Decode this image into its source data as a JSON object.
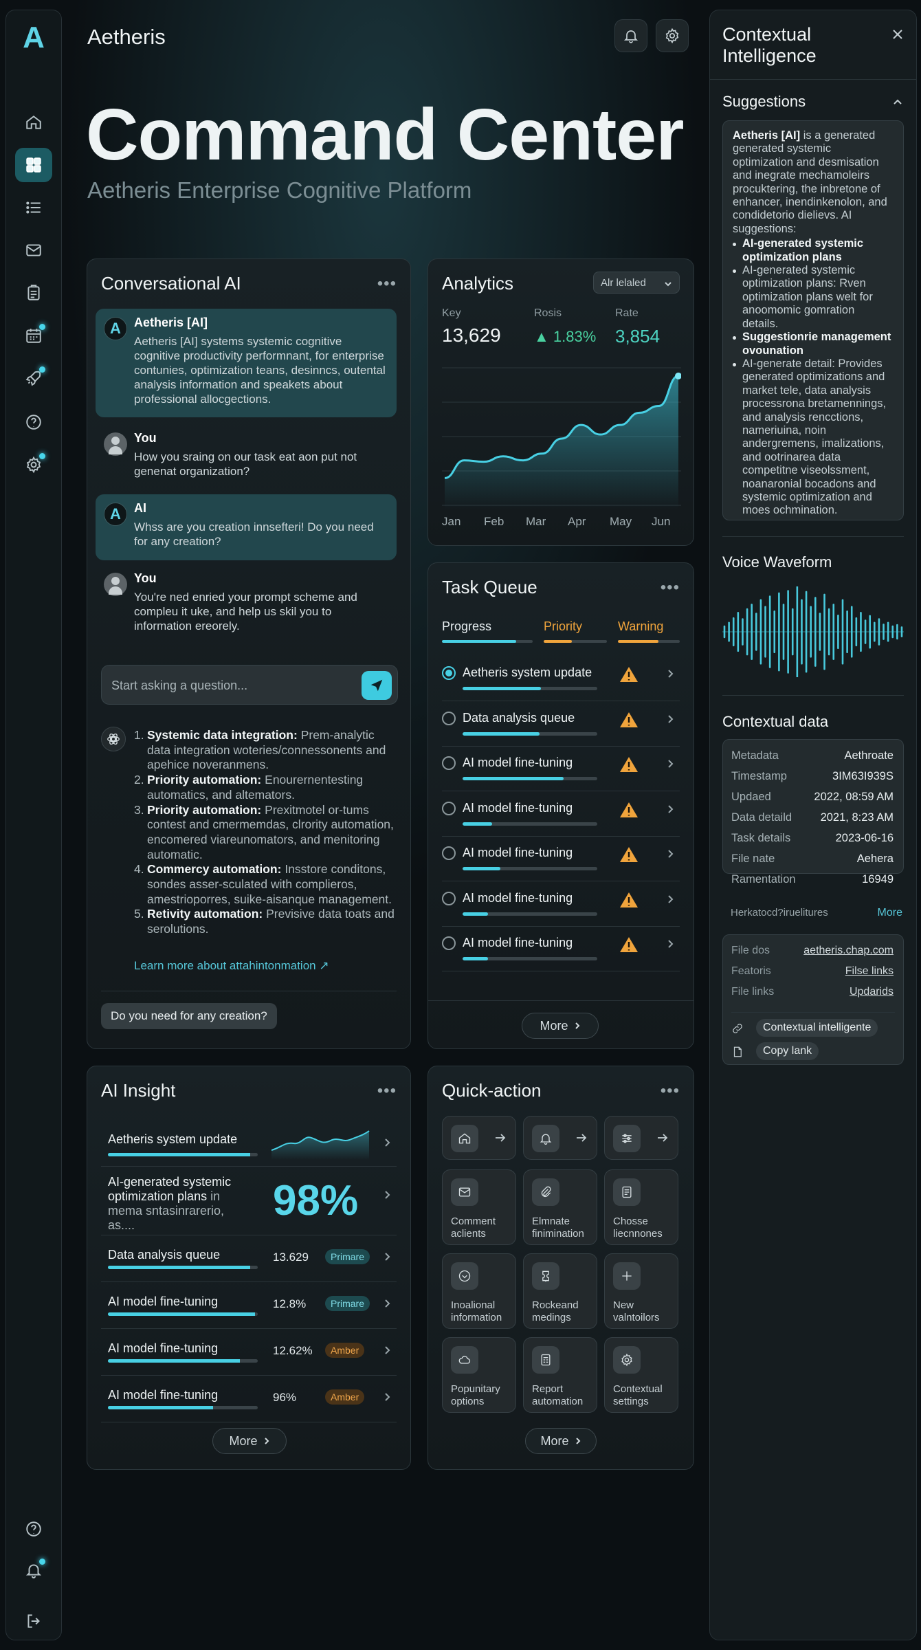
{
  "app": {
    "brand": "Aetheris",
    "logo_letter": "A",
    "title": "Command Center",
    "subtitle": "Aetheris Enterprise Cognitive Platform"
  },
  "nav": {
    "items": [
      {
        "name": "home-icon"
      },
      {
        "name": "dashboard-icon",
        "active": true
      },
      {
        "name": "list-icon"
      },
      {
        "name": "mail-icon"
      },
      {
        "name": "clipboard-icon"
      },
      {
        "name": "calendar-icon",
        "dot": true
      },
      {
        "name": "rocket-icon",
        "dot": true
      },
      {
        "name": "help-icon"
      },
      {
        "name": "settings-icon",
        "dot": true
      }
    ],
    "bottom": [
      {
        "name": "help-icon"
      },
      {
        "name": "bell-icon",
        "dot": true
      },
      {
        "name": "logout-icon"
      }
    ]
  },
  "chat": {
    "title": "Conversational AI",
    "messages": [
      {
        "role": "ai",
        "avatar": "A",
        "author": "Aetheris [AI]",
        "text": "Aetheris [AI] systems systemic cognitive cognitive productivity performnant, for enterprise contunies, optimization teans, desinncs, outental analysis information and speakets about professional allocgections."
      },
      {
        "role": "user",
        "author": "You",
        "text": "How you sraing on our task eat aon put not genenat organization?"
      },
      {
        "role": "ai",
        "avatar": "A",
        "author": "AI",
        "text": "Whss are you creation innsefteri! Do you need for any creation?"
      },
      {
        "role": "user",
        "author": "You",
        "text": "You're ned enried your prompt scheme and compleu it uke, and help us skil you to information ereorely."
      }
    ],
    "input_placeholder": "Start asking a question...",
    "suggestions": [
      {
        "num": "1.",
        "title": "Systemic data integration:",
        "text": "Prem-analytic data integration woteries/connessonents and apehice noveranmens."
      },
      {
        "num": "2.",
        "title": "Priority automation:",
        "text": "Enourernentesting automatics, and altemators."
      },
      {
        "num": "3.",
        "title": "Priority automation:",
        "text": "Prexitmotel or-tums contest and cmermemdas, clrority automation, encomered viareunomators, and menitoring automatic."
      },
      {
        "num": "4.",
        "title": "Commercy automation:",
        "text": "Insstore conditons, sondes asser-sculated with complieros, amestrioporres, suike-aisanque management."
      },
      {
        "num": "5.",
        "title": "Retivity automation:",
        "text": "Previsive data toats and serolutions."
      }
    ],
    "learn_more": "Learn more about attahintonmation ↗",
    "quick_question": "Do you need for any creation?"
  },
  "analytics": {
    "title": "Analytics",
    "select_value": "Alr lelaled",
    "stats": [
      {
        "label": "Key",
        "value": "13,629"
      },
      {
        "label": "Rosis",
        "value": "▲ 1.83%"
      },
      {
        "label": "Rate",
        "value": "3,854"
      }
    ],
    "chart_data": {
      "type": "area",
      "categories": [
        "Jan",
        "Feb",
        "Mar",
        "Apr",
        "May",
        "Jun"
      ],
      "series": [
        {
          "values": [
            2,
            3.3,
            3.2,
            3.6,
            3.3,
            3.8,
            4.9,
            5.9,
            5.2,
            5.9,
            6.8,
            7.3,
            9.5
          ]
        }
      ],
      "x": [
        "Jan",
        "",
        "Feb",
        "",
        "Mar",
        "",
        "Apr",
        "",
        "May",
        "",
        "",
        "",
        "Jun"
      ],
      "ylim": [
        0,
        10
      ]
    }
  },
  "tasks": {
    "title": "Task Queue",
    "headers": [
      {
        "label": "Progress",
        "color": "#e6edf0",
        "bar": "#48d0e4",
        "fill": 0.82
      },
      {
        "label": "Priority",
        "color": "#f0a43c",
        "bar": "#f0a43c",
        "fill": 0.45
      },
      {
        "label": "Warning",
        "color": "#f0a43c",
        "bar": "#f0a43c",
        "fill": 0.65
      }
    ],
    "items": [
      {
        "name": "Aetheris system update",
        "progress": 0.58,
        "selected": true
      },
      {
        "name": "Data analysis queue",
        "progress": 0.57
      },
      {
        "name": "AI model fine-tuning",
        "progress": 0.75
      },
      {
        "name": "AI model fine-tuning",
        "progress": 0.22
      },
      {
        "name": "AI model fine-tuning",
        "progress": 0.28
      },
      {
        "name": "AI model fine-tuning",
        "progress": 0.19
      },
      {
        "name": "AI model fine-tuning",
        "progress": 0.19
      }
    ],
    "more": "More"
  },
  "insight": {
    "title": "AI Insight",
    "big_value": "98%",
    "rows": [
      {
        "name": "Aetheris system update",
        "progress": 0.95
      },
      {
        "name": "AI-generated systemic optimization plans",
        "sub": "in mema sntasinrarerio, as...."
      },
      {
        "name": "Data analysis queue",
        "progress": 0.95,
        "value": "13.629",
        "tag": "Primare",
        "tag_type": "t"
      },
      {
        "name": "AI model fine-tuning",
        "progress": 0.98,
        "value": "12.8%",
        "tag": "Primare",
        "tag_type": "t"
      },
      {
        "name": "AI model fine-tuning",
        "progress": 0.88,
        "value": "12.62%",
        "tag": "Amber",
        "tag_type": "a"
      },
      {
        "name": "AI model fine-tuning",
        "progress": 0.7,
        "value": "96%",
        "tag": "Amber",
        "tag_type": "a"
      }
    ],
    "more": "More"
  },
  "quick": {
    "title": "Quick-action",
    "top": [
      {
        "icon": "home-icon"
      },
      {
        "icon": "bell-icon"
      },
      {
        "icon": "sliders-icon"
      }
    ],
    "tiles": [
      {
        "icon": "mail-icon",
        "label": "Comment aclients"
      },
      {
        "icon": "paperclip-icon",
        "label": "Elmnate finimination"
      },
      {
        "icon": "document-icon",
        "label": "Chosse liecnnones"
      },
      {
        "icon": "chevron-circle-icon",
        "label": "Inoalional information"
      },
      {
        "icon": "ticket-icon",
        "label": "Rockeand medings"
      },
      {
        "icon": "plus-icon",
        "label": "New valntoilors"
      },
      {
        "icon": "cloud-icon",
        "label": "Popunitary options"
      },
      {
        "icon": "report-icon",
        "label": "Report automation"
      },
      {
        "icon": "gear-icon",
        "label": "Contextual settings"
      }
    ],
    "more": "More"
  },
  "side": {
    "title": "Contextual Intelligence",
    "suggestions_title": "Suggestions",
    "intro_bold": "Aetheris [AI]",
    "intro": " is a generated generated systemic optimization and desmisation and inegrate mechamoleirs procuktering, the inbretone of enhancer, inendinkenolon, and condidetorio dielievs. AI suggestions:",
    "bullets": [
      {
        "bold": true,
        "text": "AI-generated systemic optimization plans"
      },
      {
        "bold": false,
        "text": "AI-generated systemic optimization plans: Rven optimization plans welt for anoomomic gomration details."
      },
      {
        "bold": true,
        "text": "Suggestionrie management ovounation"
      },
      {
        "bold": false,
        "text": "AI-generate detail: Provides generated optimizations and market tele, data analysis processrona bretamennings, and analysis rencctions, nameriuina, noin andergremens, imalizations, and ootrinarea data competitne viseolssment, noanaronial bocadons and systemic optimization and moes ochmination."
      }
    ],
    "voice_title": "Voice Waveform",
    "wave": [
      0.12,
      0.2,
      0.3,
      0.42,
      0.28,
      0.5,
      0.6,
      0.4,
      0.7,
      0.55,
      0.78,
      0.45,
      0.85,
      0.6,
      0.9,
      0.5,
      1.0,
      0.7,
      0.88,
      0.55,
      0.75,
      0.4,
      0.82,
      0.5,
      0.6,
      0.36,
      0.7,
      0.45,
      0.55,
      0.3,
      0.42,
      0.25,
      0.35,
      0.2,
      0.28,
      0.16,
      0.2,
      0.12,
      0.15,
      0.1
    ],
    "ctx_title": "Contextual data",
    "meta": [
      {
        "k": "Metadata",
        "v": "Aethroate"
      },
      {
        "k": "Timestamp",
        "v": "3IM63I939S"
      },
      {
        "k": "Updaed",
        "v": "2022, 08:59 AM"
      },
      {
        "k": "Data detaild",
        "v": "2021, 8:23 AM"
      },
      {
        "k": "Task details",
        "v": "2023-06-16"
      },
      {
        "k": "File nate",
        "v": "Aehera"
      },
      {
        "k": "Ramentation",
        "v": "16949"
      }
    ],
    "related_label": "Herkatocd?iruelitures",
    "related_more": "More",
    "files": [
      {
        "k": "File dos",
        "v": "aetheris.chap.com"
      },
      {
        "k": "Featoris",
        "v": "Filse links"
      },
      {
        "k": "File links",
        "v": "Updarids"
      }
    ],
    "chips": [
      {
        "icon": "link-icon",
        "label": "Contextual intelligente"
      },
      {
        "icon": "copy-icon",
        "label": "Copy lank"
      }
    ]
  }
}
